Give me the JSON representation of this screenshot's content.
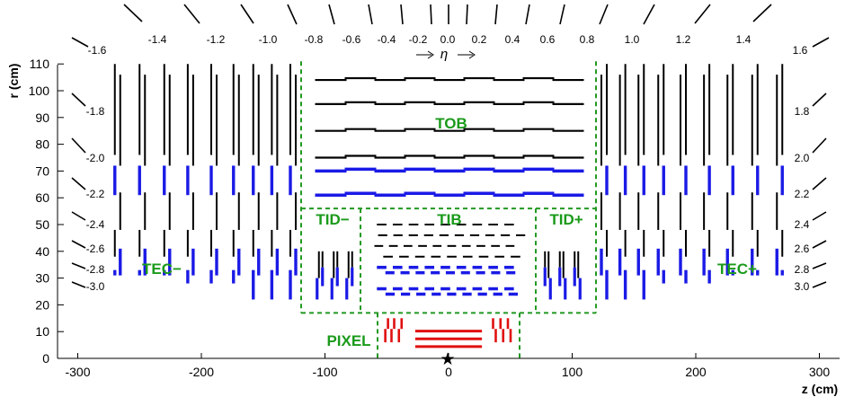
{
  "axes": {
    "ylabel": "r (cm)",
    "xlabel": "z (cm)",
    "y_ticks": [
      "0",
      "10",
      "20",
      "30",
      "40",
      "50",
      "60",
      "70",
      "80",
      "90",
      "100",
      "110"
    ],
    "x_ticks": [
      "-300",
      "-200",
      "-100",
      "0",
      "100",
      "200",
      "300"
    ]
  },
  "eta": {
    "arrow_label": "η",
    "top_labels": [
      "-1.6",
      "-1.4",
      "-1.2",
      "-1.0",
      "-0.8",
      "-0.6",
      "-0.4",
      "-0.2",
      "0.0",
      "0.2",
      "0.4",
      "0.6",
      "0.8",
      "1.0",
      "1.2",
      "1.4",
      "1.6"
    ],
    "left_labels": [
      "-1.8",
      "-2.0",
      "-2.2",
      "-2.4",
      "-2.6",
      "-2.8",
      "-3.0"
    ],
    "right_labels": [
      "1.8",
      "2.0",
      "2.2",
      "2.4",
      "2.6",
      "2.8",
      "3.0"
    ]
  },
  "regions": {
    "tob": "TOB",
    "tib": "TIB",
    "tid_minus": "TID−",
    "tid_plus": "TID+",
    "tec_minus": "TEC−",
    "tec_plus": "TEC+",
    "pixel": "PIXEL"
  },
  "colors": {
    "single_sided": "#000000",
    "double_sided": "#1a1ae6",
    "pixel": "#e01010",
    "boundary": "#229922",
    "label": "#1a9a1a",
    "ip_marker": "#000000"
  }
}
